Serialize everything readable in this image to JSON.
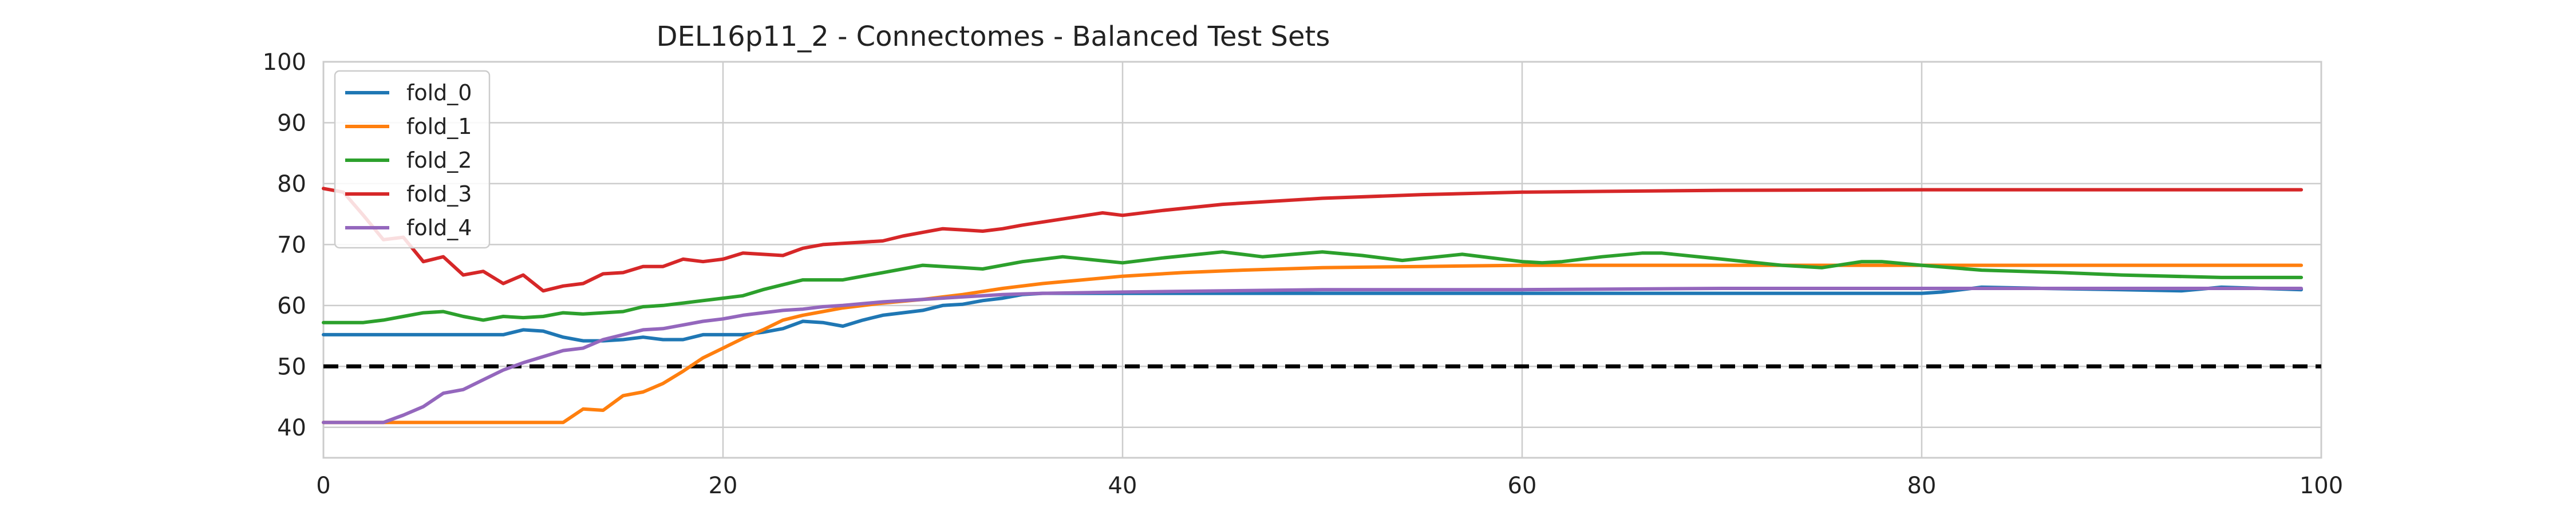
{
  "chart_data": {
    "type": "line",
    "title": "DEL16p11_2 - Connectomes - Balanced Test Sets",
    "xlabel": "",
    "ylabel": "",
    "xlim": [
      0,
      100
    ],
    "ylim": [
      35,
      100
    ],
    "x_ticks": [
      0,
      20,
      40,
      60,
      80,
      100
    ],
    "y_ticks": [
      40,
      50,
      60,
      70,
      80,
      90,
      100
    ],
    "grid": true,
    "legend_position": "upper-left",
    "reference_line": {
      "y": 50,
      "style": "dashed",
      "color": "#000000"
    },
    "series": [
      {
        "name": "fold_0",
        "color": "#1f77b4",
        "points": [
          [
            0,
            55.2
          ],
          [
            8,
            55.2
          ],
          [
            9,
            55.2
          ],
          [
            10,
            56.0
          ],
          [
            11,
            55.8
          ],
          [
            12,
            54.8
          ],
          [
            13,
            54.2
          ],
          [
            14,
            54.2
          ],
          [
            15,
            54.4
          ],
          [
            16,
            54.8
          ],
          [
            17,
            54.4
          ],
          [
            18,
            54.4
          ],
          [
            19,
            55.2
          ],
          [
            20,
            55.2
          ],
          [
            21,
            55.2
          ],
          [
            22,
            55.6
          ],
          [
            23,
            56.2
          ],
          [
            24,
            57.4
          ],
          [
            25,
            57.2
          ],
          [
            26,
            56.6
          ],
          [
            27,
            57.6
          ],
          [
            28,
            58.4
          ],
          [
            29,
            58.8
          ],
          [
            30,
            59.2
          ],
          [
            31,
            60.0
          ],
          [
            32,
            60.2
          ],
          [
            33,
            60.8
          ],
          [
            34,
            61.2
          ],
          [
            35,
            61.8
          ],
          [
            36,
            62.0
          ],
          [
            40,
            62.0
          ],
          [
            50,
            62.0
          ],
          [
            60,
            62.0
          ],
          [
            70,
            62.0
          ],
          [
            80,
            62.0
          ],
          [
            81,
            62.2
          ],
          [
            83,
            63.0
          ],
          [
            86,
            62.8
          ],
          [
            90,
            62.6
          ],
          [
            93,
            62.4
          ],
          [
            95,
            63.0
          ],
          [
            99,
            62.6
          ]
        ]
      },
      {
        "name": "fold_1",
        "color": "#ff7f0e",
        "points": [
          [
            0,
            40.8
          ],
          [
            12,
            40.8
          ],
          [
            13,
            43.0
          ],
          [
            14,
            42.8
          ],
          [
            15,
            45.2
          ],
          [
            16,
            45.8
          ],
          [
            17,
            47.2
          ],
          [
            18,
            49.2
          ],
          [
            19,
            51.4
          ],
          [
            20,
            53.0
          ],
          [
            21,
            54.6
          ],
          [
            22,
            56.0
          ],
          [
            23,
            57.6
          ],
          [
            24,
            58.4
          ],
          [
            25,
            59.0
          ],
          [
            26,
            59.6
          ],
          [
            28,
            60.4
          ],
          [
            30,
            61.0
          ],
          [
            32,
            61.8
          ],
          [
            34,
            62.8
          ],
          [
            36,
            63.6
          ],
          [
            38,
            64.2
          ],
          [
            40,
            64.8
          ],
          [
            43,
            65.4
          ],
          [
            46,
            65.8
          ],
          [
            50,
            66.2
          ],
          [
            55,
            66.4
          ],
          [
            60,
            66.6
          ],
          [
            70,
            66.6
          ],
          [
            80,
            66.6
          ],
          [
            99,
            66.6
          ]
        ]
      },
      {
        "name": "fold_2",
        "color": "#2ca02c",
        "points": [
          [
            0,
            57.2
          ],
          [
            1,
            57.2
          ],
          [
            2,
            57.2
          ],
          [
            3,
            57.6
          ],
          [
            4,
            58.2
          ],
          [
            5,
            58.8
          ],
          [
            6,
            59.0
          ],
          [
            7,
            58.2
          ],
          [
            8,
            57.6
          ],
          [
            9,
            58.2
          ],
          [
            10,
            58.0
          ],
          [
            11,
            58.2
          ],
          [
            12,
            58.8
          ],
          [
            13,
            58.6
          ],
          [
            14,
            58.8
          ],
          [
            15,
            59.0
          ],
          [
            16,
            59.8
          ],
          [
            17,
            60.0
          ],
          [
            18,
            60.4
          ],
          [
            19,
            60.8
          ],
          [
            20,
            61.2
          ],
          [
            21,
            61.6
          ],
          [
            22,
            62.6
          ],
          [
            23,
            63.4
          ],
          [
            24,
            64.2
          ],
          [
            25,
            64.2
          ],
          [
            26,
            64.2
          ],
          [
            27,
            64.8
          ],
          [
            28,
            65.4
          ],
          [
            29,
            66.0
          ],
          [
            30,
            66.6
          ],
          [
            31,
            66.4
          ],
          [
            32,
            66.2
          ],
          [
            33,
            66.0
          ],
          [
            34,
            66.6
          ],
          [
            35,
            67.2
          ],
          [
            37,
            68.0
          ],
          [
            40,
            67.0
          ],
          [
            42,
            67.8
          ],
          [
            45,
            68.8
          ],
          [
            47,
            68.0
          ],
          [
            50,
            68.8
          ],
          [
            52,
            68.2
          ],
          [
            54,
            67.4
          ],
          [
            57,
            68.4
          ],
          [
            60,
            67.2
          ],
          [
            61,
            67.0
          ],
          [
            62,
            67.2
          ],
          [
            64,
            68.0
          ],
          [
            66,
            68.6
          ],
          [
            67,
            68.6
          ],
          [
            70,
            67.6
          ],
          [
            73,
            66.6
          ],
          [
            75,
            66.2
          ],
          [
            77,
            67.2
          ],
          [
            78,
            67.2
          ],
          [
            80,
            66.6
          ],
          [
            83,
            65.8
          ],
          [
            87,
            65.4
          ],
          [
            90,
            65.0
          ],
          [
            95,
            64.6
          ],
          [
            99,
            64.6
          ]
        ]
      },
      {
        "name": "fold_3",
        "color": "#d62728",
        "points": [
          [
            0,
            79.2
          ],
          [
            1,
            78.6
          ],
          [
            2,
            74.8
          ],
          [
            3,
            70.8
          ],
          [
            4,
            71.2
          ],
          [
            5,
            67.2
          ],
          [
            6,
            68.0
          ],
          [
            7,
            65.0
          ],
          [
            8,
            65.6
          ],
          [
            9,
            63.6
          ],
          [
            10,
            65.0
          ],
          [
            11,
            62.4
          ],
          [
            12,
            63.2
          ],
          [
            13,
            63.6
          ],
          [
            14,
            65.2
          ],
          [
            15,
            65.4
          ],
          [
            16,
            66.4
          ],
          [
            17,
            66.4
          ],
          [
            18,
            67.6
          ],
          [
            19,
            67.2
          ],
          [
            20,
            67.6
          ],
          [
            21,
            68.6
          ],
          [
            22,
            68.4
          ],
          [
            23,
            68.2
          ],
          [
            24,
            69.4
          ],
          [
            25,
            70.0
          ],
          [
            26,
            70.2
          ],
          [
            27,
            70.4
          ],
          [
            28,
            70.6
          ],
          [
            29,
            71.4
          ],
          [
            30,
            72.0
          ],
          [
            31,
            72.6
          ],
          [
            32,
            72.4
          ],
          [
            33,
            72.2
          ],
          [
            34,
            72.6
          ],
          [
            35,
            73.2
          ],
          [
            37,
            74.2
          ],
          [
            39,
            75.2
          ],
          [
            40,
            74.8
          ],
          [
            42,
            75.6
          ],
          [
            45,
            76.6
          ],
          [
            50,
            77.6
          ],
          [
            55,
            78.2
          ],
          [
            60,
            78.6
          ],
          [
            70,
            78.9
          ],
          [
            80,
            79.0
          ],
          [
            90,
            79.0
          ],
          [
            99,
            79.0
          ]
        ]
      },
      {
        "name": "fold_4",
        "color": "#9467bd",
        "points": [
          [
            0,
            40.8
          ],
          [
            3,
            40.8
          ],
          [
            4,
            42.0
          ],
          [
            5,
            43.4
          ],
          [
            6,
            45.6
          ],
          [
            7,
            46.2
          ],
          [
            8,
            47.8
          ],
          [
            9,
            49.4
          ],
          [
            10,
            50.6
          ],
          [
            11,
            51.6
          ],
          [
            12,
            52.6
          ],
          [
            13,
            53.0
          ],
          [
            14,
            54.4
          ],
          [
            15,
            55.2
          ],
          [
            16,
            56.0
          ],
          [
            17,
            56.2
          ],
          [
            18,
            56.8
          ],
          [
            19,
            57.4
          ],
          [
            20,
            57.8
          ],
          [
            21,
            58.4
          ],
          [
            22,
            58.8
          ],
          [
            23,
            59.2
          ],
          [
            24,
            59.4
          ],
          [
            25,
            59.8
          ],
          [
            26,
            60.0
          ],
          [
            28,
            60.6
          ],
          [
            30,
            61.0
          ],
          [
            32,
            61.4
          ],
          [
            34,
            61.8
          ],
          [
            36,
            62.0
          ],
          [
            40,
            62.2
          ],
          [
            50,
            62.6
          ],
          [
            60,
            62.6
          ],
          [
            70,
            62.8
          ],
          [
            80,
            62.8
          ],
          [
            83,
            62.8
          ],
          [
            90,
            62.8
          ],
          [
            95,
            62.8
          ],
          [
            99,
            62.8
          ]
        ]
      }
    ]
  }
}
